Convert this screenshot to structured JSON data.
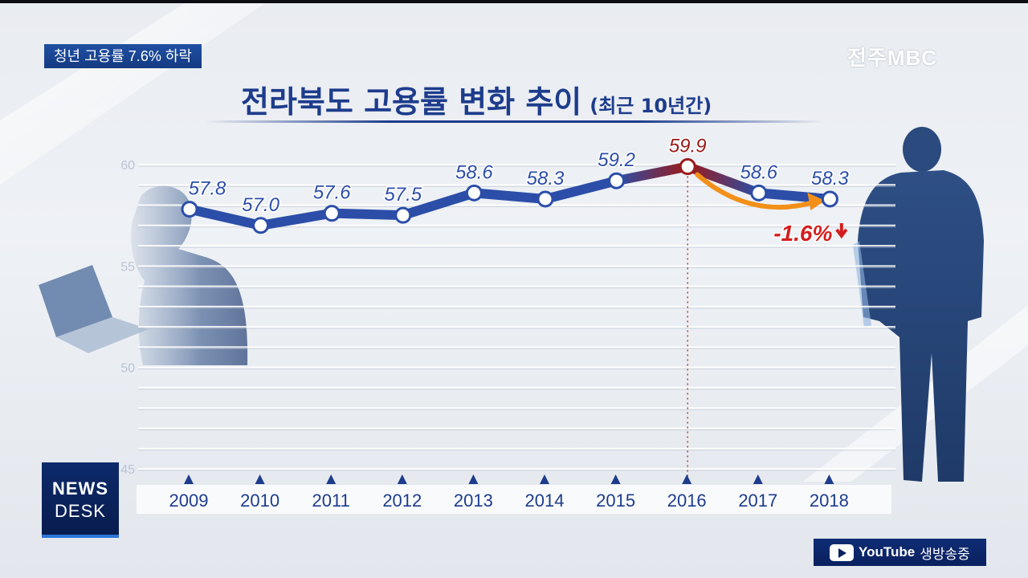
{
  "headline_badge": "청년 고용률 7.6% 하락",
  "broadcaster_logo": "전주MBC",
  "program_logo": {
    "line1": "NEWS",
    "line2": "DESK"
  },
  "youtube_banner": {
    "brand": "YouTube",
    "text": "생방송중"
  },
  "chart_data": {
    "type": "line",
    "title": "전라북도 고용률 변화 추이",
    "subtitle": "(최근 10년간)",
    "xlabel": "",
    "ylabel": "",
    "categories": [
      "2009",
      "2010",
      "2011",
      "2012",
      "2013",
      "2014",
      "2015",
      "2016",
      "2017",
      "2018"
    ],
    "series": [
      {
        "values": [
          57.8,
          57.0,
          57.6,
          57.5,
          58.6,
          58.3,
          59.2,
          59.9,
          58.6,
          58.3
        ]
      }
    ],
    "data_labels": [
      "57.8",
      "57.0",
      "57.6",
      "57.5",
      "58.6",
      "58.3",
      "59.2",
      "59.9",
      "58.6",
      "58.3"
    ],
    "highlight_category": "2016",
    "y_ticks": [
      45,
      50,
      55,
      60
    ],
    "ylim": [
      45,
      60.5
    ],
    "grid": true,
    "annotation": {
      "text": "-1.6%",
      "from": "2016",
      "to": "2018",
      "direction": "down"
    },
    "colors": {
      "line": "#2c4ea8",
      "highlight": "#9b1a1a",
      "annotation": "#d41e1e",
      "arrow": "#f39019",
      "tick_marker": "#1d3c8c"
    }
  }
}
